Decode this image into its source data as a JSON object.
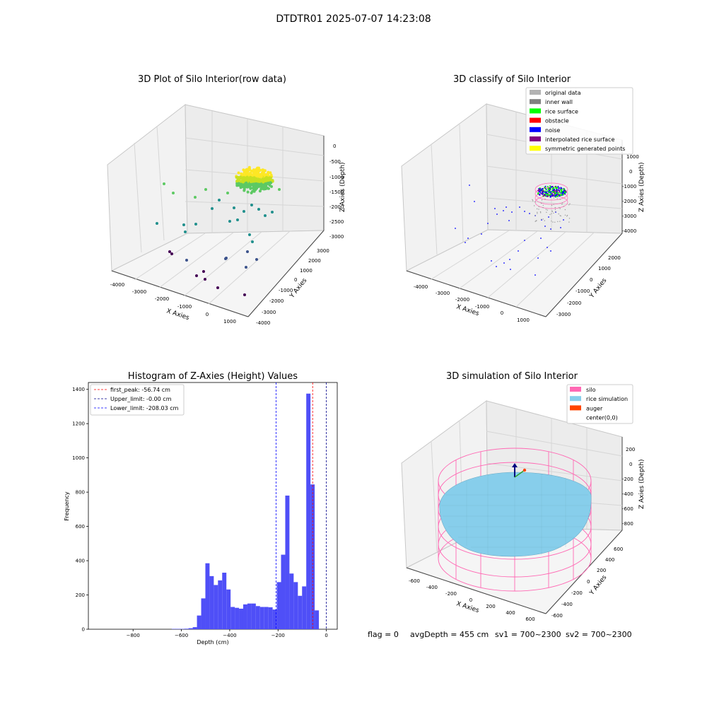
{
  "suptitle": "DTDTR01 2025-07-07 14:23:08",
  "status_line": {
    "flag": "flag = 0",
    "avg": "avgDepth = 455 cm",
    "sv1": "sv1 = 700~2300",
    "sv2": "sv2 = 700~2300"
  },
  "chart_data": [
    {
      "type": "scatter",
      "subtype": "3d",
      "title": "3D Plot of Silo Interior(row data)",
      "xlabel": "X Axies",
      "ylabel": "Y Axies",
      "zlabel": "Z Axies (Depth)",
      "x_ticks": [
        "-4000",
        "-3000",
        "-2000",
        "-1000",
        "0",
        "1000"
      ],
      "y_ticks": [
        "-4000",
        "-3000",
        "-2000",
        "-1000",
        "0",
        "1000",
        "2000",
        "3000"
      ],
      "z_ticks": [
        "0",
        "-500",
        "-1000",
        "-1500",
        "-2000",
        "-2500",
        "-3000"
      ],
      "colormap": "viridis (by depth)",
      "grid": true
    },
    {
      "type": "scatter",
      "subtype": "3d",
      "title": "3D classify of Silo Interior",
      "xlabel": "X Axies",
      "ylabel": "Y Axies",
      "zlabel": "Z Axies (Depth)",
      "x_ticks": [
        "-4000",
        "-3000",
        "-2000",
        "-1000",
        "0",
        "1000"
      ],
      "y_ticks": [
        "-3000",
        "-2000",
        "-1000",
        "0",
        "1000",
        "2000"
      ],
      "z_ticks": [
        "1000",
        "0",
        "-1000",
        "-2000",
        "-3000",
        "-4000"
      ],
      "legend_position": "top-right",
      "legend": [
        {
          "label": "original data",
          "color": "#b3b3b3"
        },
        {
          "label": "inner wall",
          "color": "#808080"
        },
        {
          "label": "rice surface",
          "color": "#00ff00"
        },
        {
          "label": "obstacle",
          "color": "#ff0000"
        },
        {
          "label": "noise",
          "color": "#0000ff"
        },
        {
          "label": "interpolated rice surface",
          "color": "#800080"
        },
        {
          "label": "symmetric generated points",
          "color": "#ffff00"
        }
      ],
      "grid": true
    },
    {
      "type": "bar",
      "subtype": "histogram",
      "title": "Histogram of Z-Axies (Height) Values",
      "xlabel": "Depth (cm)",
      "ylabel": "Frequency",
      "xlim": [
        -985,
        45
      ],
      "ylim": [
        0,
        1440
      ],
      "x_ticks": [
        -800,
        -600,
        -400,
        -200,
        0
      ],
      "y_ticks": [
        0,
        200,
        400,
        600,
        800,
        1000,
        1200,
        1400
      ],
      "bar_color": "#4f4ff7",
      "bin_width": 17.4,
      "bins": [
        {
          "x": -640,
          "v": 2
        },
        {
          "x": -622.6,
          "v": 2
        },
        {
          "x": -605.2,
          "v": 2
        },
        {
          "x": -587.8,
          "v": 3
        },
        {
          "x": -570.4,
          "v": 6
        },
        {
          "x": -553,
          "v": 12
        },
        {
          "x": -535.6,
          "v": 80
        },
        {
          "x": -518.2,
          "v": 180
        },
        {
          "x": -500.8,
          "v": 385
        },
        {
          "x": -483.4,
          "v": 310
        },
        {
          "x": -466,
          "v": 258
        },
        {
          "x": -448.6,
          "v": 285
        },
        {
          "x": -431.2,
          "v": 330
        },
        {
          "x": -413.8,
          "v": 232
        },
        {
          "x": -396.4,
          "v": 130
        },
        {
          "x": -379,
          "v": 125
        },
        {
          "x": -361.6,
          "v": 120
        },
        {
          "x": -344.2,
          "v": 145
        },
        {
          "x": -326.8,
          "v": 150
        },
        {
          "x": -309.4,
          "v": 150
        },
        {
          "x": -292,
          "v": 135
        },
        {
          "x": -274.6,
          "v": 130
        },
        {
          "x": -257.2,
          "v": 130
        },
        {
          "x": -239.8,
          "v": 128
        },
        {
          "x": -222.4,
          "v": 115
        },
        {
          "x": -205,
          "v": 275
        },
        {
          "x": -187.6,
          "v": 435
        },
        {
          "x": -170.2,
          "v": 780
        },
        {
          "x": -152.8,
          "v": 325
        },
        {
          "x": -135.4,
          "v": 275
        },
        {
          "x": -118,
          "v": 195
        },
        {
          "x": -100.6,
          "v": 250
        },
        {
          "x": -83.2,
          "v": 1375
        },
        {
          "x": -65.8,
          "v": 845
        },
        {
          "x": -48.4,
          "v": 110
        }
      ],
      "lines": [
        {
          "label": "first_peak: -56.74 cm",
          "x": -56.74,
          "color": "#ff0000"
        },
        {
          "label": "Upper_limit: -0.00 cm",
          "x": 0,
          "color": "#00008b"
        },
        {
          "label": "Lower_limit: -208.03 cm",
          "x": -208.03,
          "color": "#0000ff"
        }
      ],
      "legend_position": "top-left",
      "grid": false
    },
    {
      "type": "surface",
      "subtype": "3d",
      "title": "3D simulation of Silo Interior",
      "xlabel": "X Axies",
      "ylabel": "Y Axies",
      "zlabel": "Z Axies (Depth)",
      "x_ticks": [
        "-600",
        "-400",
        "-200",
        "0",
        "200",
        "400",
        "600"
      ],
      "y_ticks": [
        "-600",
        "-400",
        "-200",
        "0",
        "200",
        "400",
        "600"
      ],
      "z_ticks": [
        "200",
        "0",
        "-200",
        "-400",
        "-600",
        "-800"
      ],
      "legend_position": "top-right",
      "legend": [
        {
          "label": "silo",
          "color": "#ff69b4"
        },
        {
          "label": "rice simulation",
          "color": "#87ceeb"
        },
        {
          "label": "auger",
          "color": "#ff4500"
        },
        {
          "label": "center(0,0)",
          "color": "#ffffff"
        }
      ],
      "grid": true
    }
  ]
}
